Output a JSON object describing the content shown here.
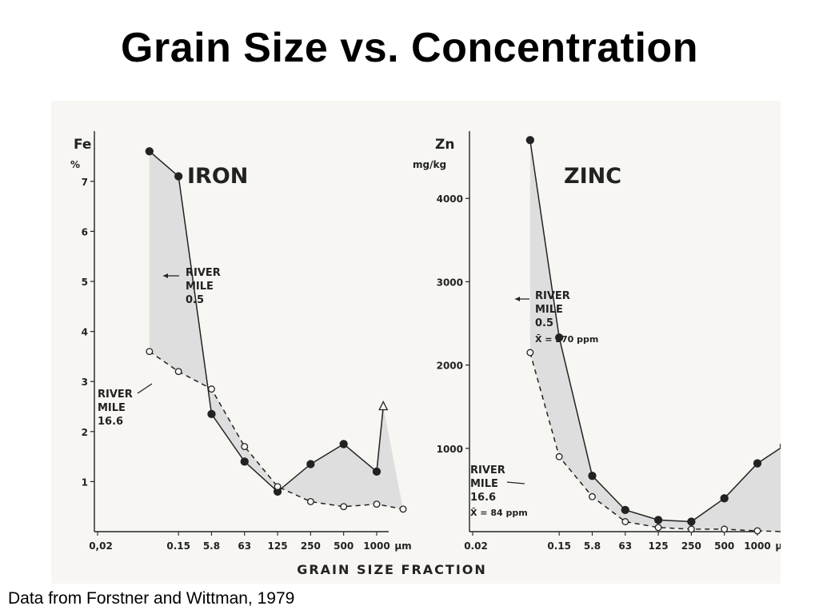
{
  "slide": {
    "title": "Grain Size vs. Concentration",
    "caption": "Data from Forstner and Wittman, 1979"
  },
  "shared_x": {
    "label": "GRAIN SIZE FRACTION",
    "unit": "μm",
    "iron_tick_labels": [
      "0,02",
      "0.15",
      "5.8",
      "63",
      "125",
      "250",
      "500",
      "1000"
    ],
    "zinc_tick_labels": [
      "0.02",
      "0.15",
      "5.8",
      "63",
      "125",
      "250",
      "500",
      "1000"
    ]
  },
  "colors": {
    "ink": "#222222",
    "shade": "#dcdcdc",
    "paper": "#f7f6f3"
  },
  "chart_data": [
    {
      "type": "line",
      "title": "IRON",
      "ylabel": "Fe",
      "yunit": "%",
      "ylim": [
        0,
        8
      ],
      "yticks": [
        1,
        2,
        3,
        4,
        5,
        6,
        7
      ],
      "x_categories": [
        "0.02",
        "0.15",
        "5.8",
        "63",
        "125",
        "250",
        "500",
        "1000",
        "μm"
      ],
      "shade_between_series": true,
      "series": [
        {
          "name": "RIVER MILE 0.5",
          "marker": "filled-circle",
          "line": "solid",
          "x": [
            0.02,
            0.9,
            1.9,
            2.9,
            3.9,
            4.9,
            5.9,
            6.9
          ],
          "values": [
            7.6,
            7.1,
            2.35,
            1.4,
            0.8,
            1.35,
            1.75,
            1.2
          ]
        },
        {
          "name": "RIVER MILE 16.6",
          "marker": "open-circle",
          "line": "dashed",
          "x": [
            0.02,
            0.9,
            1.9,
            2.9,
            3.9,
            4.9,
            5.9,
            6.9,
            7.7
          ],
          "values": [
            3.6,
            3.2,
            2.85,
            1.7,
            0.9,
            0.6,
            0.5,
            0.55,
            0.45
          ]
        }
      ],
      "extra_point": {
        "x": 7.1,
        "value": 2.5,
        "marker": "open-triangle"
      },
      "annotations": [
        {
          "lines": [
            "RIVER",
            "MILE",
            "0.5"
          ]
        },
        {
          "lines": [
            "RIVER",
            "MILE",
            "16.6"
          ]
        }
      ]
    },
    {
      "type": "line",
      "title": "ZINC",
      "ylabel": "Zn",
      "yunit": "mg/kg",
      "ylim": [
        0,
        4800
      ],
      "yticks": [
        1000,
        2000,
        3000,
        4000
      ],
      "x_categories": [
        "0.02",
        "0.15",
        "5.8",
        "63",
        "125",
        "250",
        "500",
        "1000",
        "μm"
      ],
      "shade_between_series": true,
      "series": [
        {
          "name": "RIVER MILE 0.5",
          "marker": "filled-circle",
          "line": "solid",
          "x": [
            0.02,
            0.9,
            1.9,
            2.9,
            3.9,
            4.9,
            5.9,
            6.9,
            7.7
          ],
          "values": [
            4700,
            2330,
            670,
            260,
            140,
            120,
            400,
            820,
            1030
          ]
        },
        {
          "name": "RIVER MILE 16.6",
          "marker": "open-circle",
          "line": "dashed",
          "x": [
            0.02,
            0.9,
            1.9,
            2.9,
            3.9,
            4.9,
            5.9,
            6.9,
            7.7
          ],
          "values": [
            2150,
            900,
            420,
            120,
            50,
            30,
            30,
            10,
            0
          ]
        }
      ],
      "annotations": [
        {
          "lines": [
            "RIVER",
            "MILE",
            "0.5",
            "X̄ = 270 ppm"
          ]
        },
        {
          "lines": [
            "RIVER",
            "MILE",
            "16.6",
            "X̄ = 84 ppm"
          ]
        }
      ]
    }
  ]
}
